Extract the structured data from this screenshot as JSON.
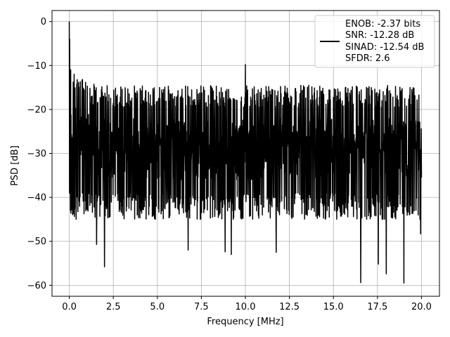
{
  "chart_data": {
    "type": "line",
    "title": "",
    "xlabel": "Frequency [MHz]",
    "ylabel": "PSD [dB]",
    "xlim": [
      -0.98,
      21.02
    ],
    "ylim": [
      -62.5,
      2.5
    ],
    "xticks": [
      0.0,
      2.5,
      5.0,
      7.5,
      10.0,
      12.5,
      15.0,
      17.5,
      20.0
    ],
    "xtick_labels": [
      "0.0",
      "2.5",
      "5.0",
      "7.5",
      "10.0",
      "12.5",
      "15.0",
      "17.5",
      "20.0"
    ],
    "yticks": [
      0,
      -10,
      -20,
      -30,
      -40,
      -50,
      -60
    ],
    "ytick_labels": [
      "0",
      "−10",
      "−20",
      "−30",
      "−40",
      "−50",
      "−60"
    ],
    "grid": true,
    "legend_position": "top-right",
    "series": [
      {
        "color": "#000000",
        "x_range": [
          0,
          20
        ],
        "peaks": [
          {
            "x": 0.0,
            "y": 0.0
          },
          {
            "x": 0.02,
            "y": -4.0
          },
          {
            "x": 0.08,
            "y": -11.0
          },
          {
            "x": 10.0,
            "y": -9.8
          }
        ],
        "dips": [
          {
            "x": 0.3,
            "y": -41.5
          },
          {
            "x": 1.55,
            "y": -50.7
          },
          {
            "x": 2.0,
            "y": -55.8
          },
          {
            "x": 6.75,
            "y": -52.0
          },
          {
            "x": 8.85,
            "y": -52.4
          },
          {
            "x": 9.2,
            "y": -53.0
          },
          {
            "x": 11.75,
            "y": -52.5
          },
          {
            "x": 16.55,
            "y": -59.4
          },
          {
            "x": 17.55,
            "y": -55.2
          },
          {
            "x": 18.0,
            "y": -57.4
          },
          {
            "x": 19.0,
            "y": -59.5
          },
          {
            "x": 19.95,
            "y": -48.3
          }
        ],
        "noise_floor_mean": -29,
        "noise_floor_spread": [
          -45,
          -17
        ]
      }
    ],
    "legend": {
      "lines": [
        "ENOB: -2.37 bits",
        "SNR: -12.28 dB",
        "SINAD: -12.54 dB",
        "SFDR: 2.6"
      ]
    }
  }
}
